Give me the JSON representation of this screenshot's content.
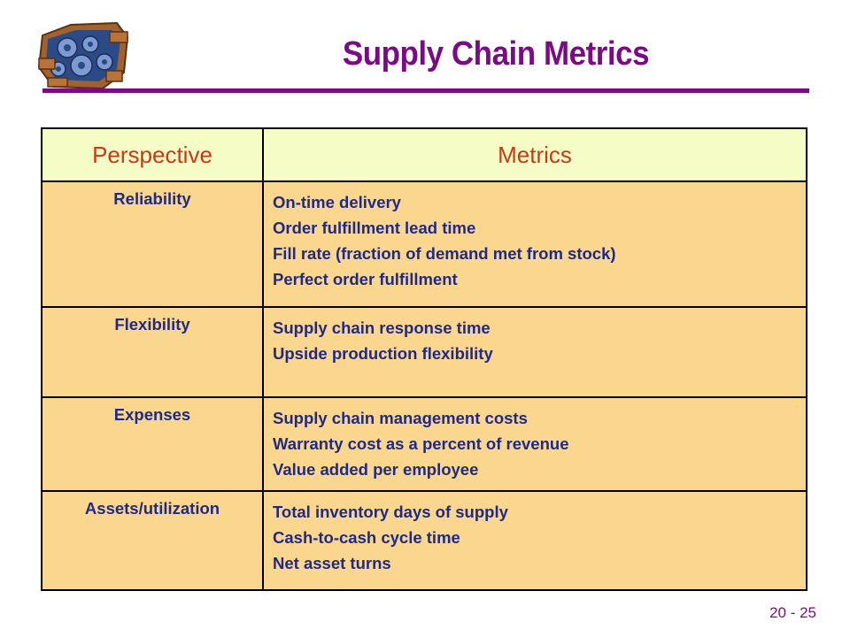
{
  "slide": {
    "title": "Supply Chain Metrics",
    "page_number": "20 - 25"
  },
  "table": {
    "headers": [
      "Perspective",
      "Metrics"
    ],
    "rows": [
      {
        "perspective": "Reliability",
        "metrics": [
          "On-time delivery",
          "Order fulfillment lead time",
          "Fill rate (fraction of demand met from stock)",
          "Perfect order fulfillment"
        ]
      },
      {
        "perspective": "Flexibility",
        "metrics": [
          "Supply chain response time",
          "Upside production flexibility"
        ]
      },
      {
        "perspective": "Expenses",
        "metrics": [
          "Supply chain management costs",
          "Warranty cost as a percent of revenue",
          "Value added per employee"
        ]
      },
      {
        "perspective": "Assets/utilization",
        "metrics": [
          "Total inventory days of supply",
          "Cash-to-cash cycle time",
          "Net asset turns"
        ]
      }
    ]
  },
  "colors": {
    "title": "#7b0a87",
    "header_bg": "#f5fcc6",
    "header_text": "#c83a16",
    "cell_bg": "#fbd68e",
    "cell_text": "#1f2a86"
  }
}
